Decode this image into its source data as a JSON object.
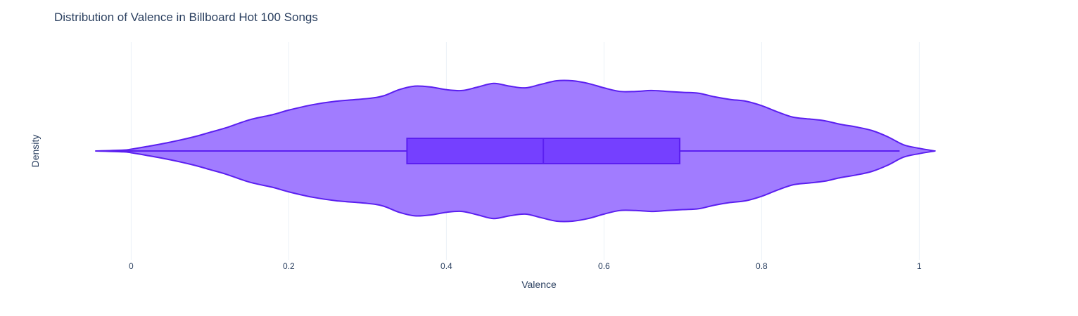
{
  "chart_data": {
    "type": "violin",
    "title": "Distribution of Valence in Billboard Hot 100 Songs",
    "xlabel": "Valence",
    "ylabel": "Density",
    "xlim": [
      -0.095,
      1.13
    ],
    "x_ticks": [
      0,
      0.2,
      0.4,
      0.6,
      0.8,
      1
    ],
    "x_tick_labels": [
      "0",
      "0.2",
      "0.4",
      "0.6",
      "0.8",
      "1"
    ],
    "grid": true,
    "legend": "none",
    "series": [
      {
        "kind": "violin",
        "fill_color": "#a17cff",
        "line_color": "#5b1ff0",
        "box_fill_color": "#7540ff",
        "box": {
          "lower_fence": -0.045,
          "q1": 0.35,
          "median": 0.523,
          "q3": 0.696,
          "upper_fence": 0.975
        },
        "density": {
          "x": [
            -0.045,
            -0.01,
            0.0,
            0.02,
            0.05,
            0.08,
            0.1,
            0.12,
            0.15,
            0.18,
            0.2,
            0.23,
            0.26,
            0.3,
            0.32,
            0.34,
            0.36,
            0.38,
            0.4,
            0.42,
            0.44,
            0.46,
            0.48,
            0.5,
            0.52,
            0.54,
            0.56,
            0.58,
            0.6,
            0.62,
            0.64,
            0.66,
            0.68,
            0.7,
            0.72,
            0.74,
            0.76,
            0.78,
            0.8,
            0.82,
            0.84,
            0.86,
            0.88,
            0.9,
            0.92,
            0.94,
            0.96,
            0.98,
            1.0,
            1.02
          ],
          "y": [
            0.0,
            0.01,
            0.02,
            0.05,
            0.1,
            0.16,
            0.21,
            0.26,
            0.35,
            0.41,
            0.46,
            0.52,
            0.56,
            0.59,
            0.62,
            0.69,
            0.73,
            0.72,
            0.69,
            0.68,
            0.72,
            0.76,
            0.73,
            0.71,
            0.75,
            0.79,
            0.79,
            0.76,
            0.71,
            0.67,
            0.67,
            0.68,
            0.67,
            0.66,
            0.65,
            0.61,
            0.58,
            0.56,
            0.51,
            0.44,
            0.38,
            0.36,
            0.34,
            0.3,
            0.27,
            0.23,
            0.16,
            0.07,
            0.03,
            0.0
          ]
        }
      }
    ]
  }
}
